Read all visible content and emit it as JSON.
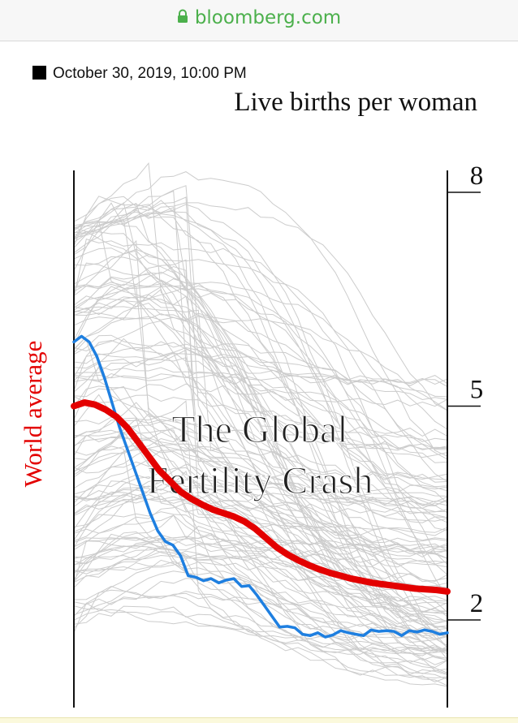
{
  "browser": {
    "domain": "bloomberg.com"
  },
  "article": {
    "timestamp": "October 30, 2019, 10:00 PM"
  },
  "colors": {
    "world": "#e30000",
    "highlight": "#1e7fe0",
    "countries": "#cccccc",
    "url": "#4cb04c"
  },
  "chart_data": {
    "type": "line",
    "title_lines": [
      "The Global",
      "Fertility Crash"
    ],
    "ylabel": "Live births per woman",
    "xlabel": "",
    "ylim": [
      0.8,
      8.3
    ],
    "yticks": [
      8,
      5,
      2
    ],
    "grid": false,
    "background_series": {
      "description_count": 120
    },
    "series": [
      {
        "name": "World average",
        "role": "world",
        "values": [
          5.0,
          5.05,
          5.02,
          4.95,
          4.85,
          4.7,
          4.5,
          4.3,
          4.1,
          3.95,
          3.8,
          3.7,
          3.62,
          3.55,
          3.5,
          3.45,
          3.38,
          3.28,
          3.15,
          3.02,
          2.92,
          2.84,
          2.77,
          2.71,
          2.66,
          2.62,
          2.58,
          2.55,
          2.52,
          2.5,
          2.48,
          2.46,
          2.44,
          2.43,
          2.42,
          2.4
        ]
      },
      {
        "name": "",
        "role": "highlight",
        "values": [
          5.9,
          5.98,
          5.9,
          5.7,
          5.4,
          5.05,
          4.7,
          4.4,
          4.1,
          3.8,
          3.5,
          3.25,
          3.1,
          3.05,
          2.9,
          2.62,
          2.6,
          2.55,
          2.58,
          2.52,
          2.56,
          2.58,
          2.47,
          2.48,
          2.35,
          2.2,
          2.05,
          1.9,
          1.91,
          1.89,
          1.8,
          1.78,
          1.82,
          1.76,
          1.79,
          1.85,
          1.82,
          1.8,
          1.78,
          1.86,
          1.84,
          1.85,
          1.84,
          1.78,
          1.85,
          1.83,
          1.86,
          1.84,
          1.8,
          1.82
        ]
      }
    ]
  }
}
